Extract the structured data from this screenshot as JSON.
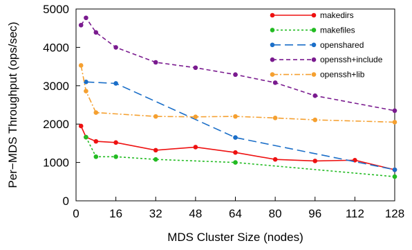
{
  "chart_data": {
    "type": "line",
    "xlabel": "MDS Cluster Size (nodes)",
    "ylabel": "Per−MDS Throughput (ops/sec)",
    "xlim": [
      0,
      128
    ],
    "ylim": [
      0,
      5000
    ],
    "xticks": [
      0,
      16,
      32,
      48,
      64,
      80,
      96,
      112,
      128
    ],
    "yticks": [
      0,
      1000,
      2000,
      3000,
      4000,
      5000
    ],
    "grid": false,
    "legend_position": "top-right",
    "series": [
      {
        "name": "makedirs",
        "color": "#ee1111",
        "line_style": "solid",
        "x": [
          2,
          4,
          8,
          16,
          32,
          48,
          64,
          80,
          96,
          112,
          128
        ],
        "y": [
          1950,
          1660,
          1550,
          1520,
          1320,
          1400,
          1260,
          1080,
          1040,
          1060,
          810
        ]
      },
      {
        "name": "makefiles",
        "color": "#22bb22",
        "line_style": "dotted",
        "x": [
          4,
          8,
          16,
          32,
          64,
          128
        ],
        "y": [
          1660,
          1150,
          1150,
          1080,
          1000,
          630
        ]
      },
      {
        "name": "openshared",
        "color": "#1a6ec8",
        "line_style": "long-dash",
        "x": [
          4,
          16,
          64,
          128
        ],
        "y": [
          3100,
          3060,
          1650,
          810
        ]
      },
      {
        "name": "openssh+include",
        "color": "#7a1b8f",
        "line_style": "short-dash",
        "x": [
          2,
          4,
          8,
          16,
          32,
          48,
          64,
          80,
          96,
          128
        ],
        "y": [
          4580,
          4770,
          4390,
          4000,
          3610,
          3470,
          3290,
          3080,
          2740,
          2350
        ]
      },
      {
        "name": "openssh+lib",
        "color": "#f5a030",
        "line_style": "dash-dot",
        "x": [
          2,
          4,
          8,
          32,
          48,
          64,
          80,
          96,
          128
        ],
        "y": [
          3530,
          2860,
          2300,
          2200,
          2190,
          2200,
          2160,
          2110,
          2050
        ]
      }
    ]
  }
}
